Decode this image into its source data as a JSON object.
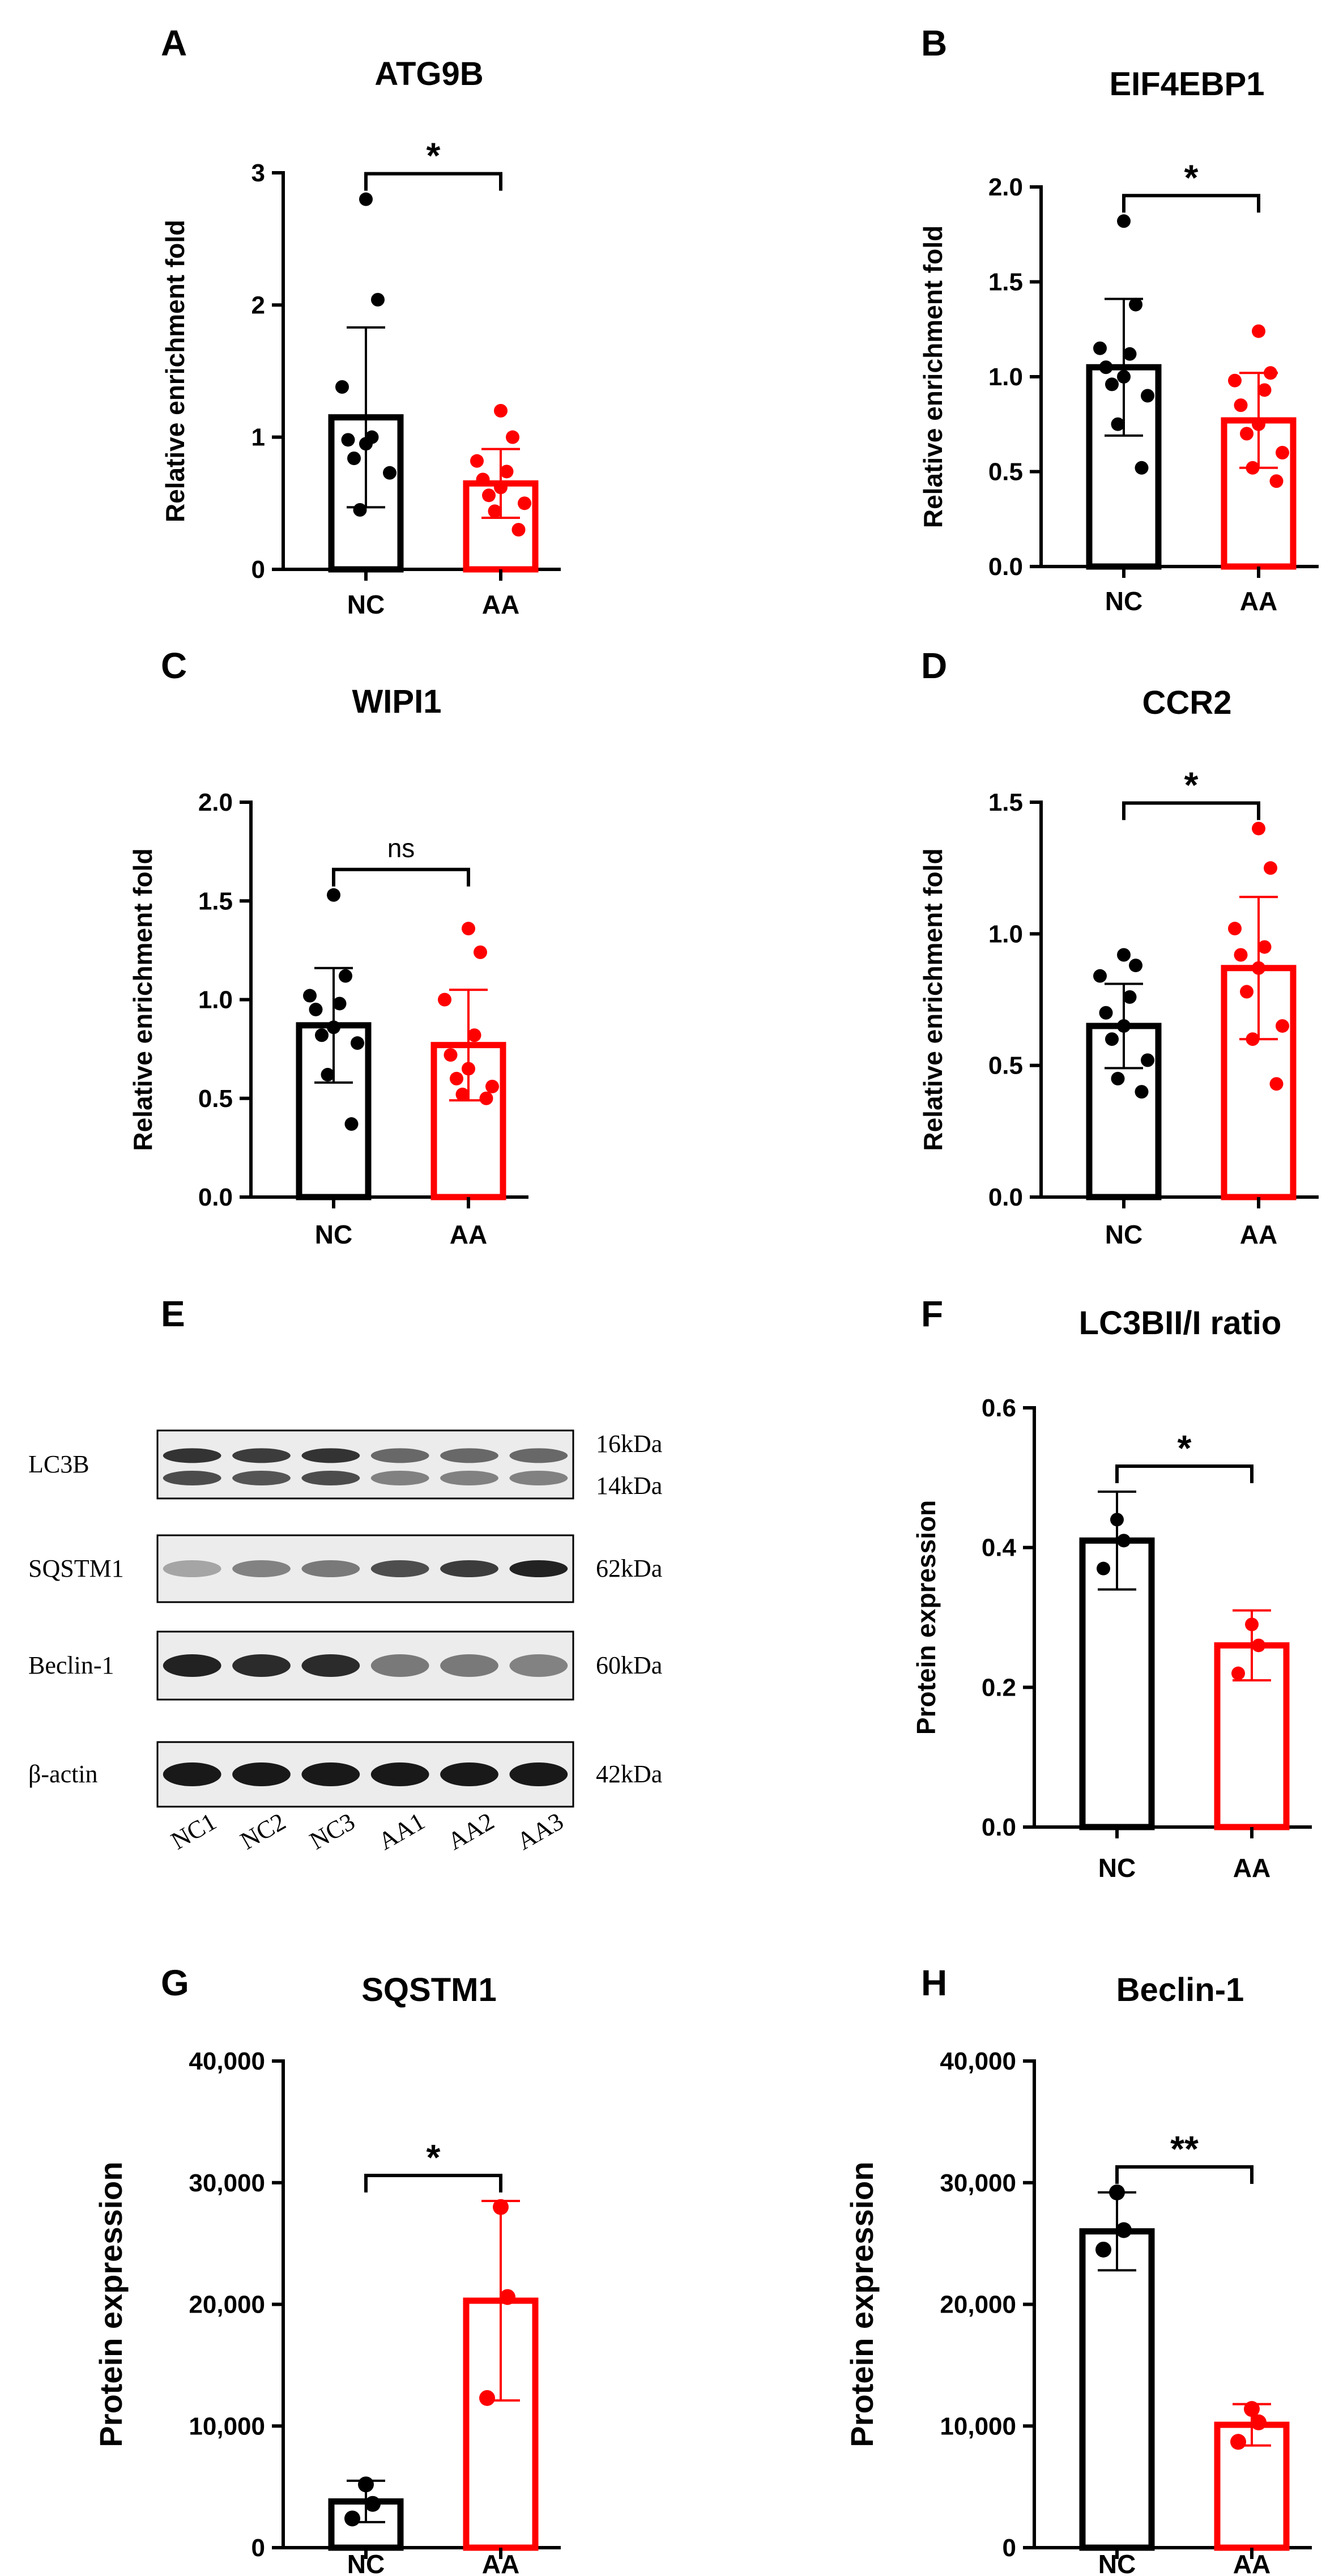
{
  "panels": [
    "A",
    "B",
    "C",
    "D",
    "E",
    "F",
    "G",
    "H"
  ],
  "chart_data": [
    {
      "type": "bar",
      "panel": "A",
      "title": "ATG9B",
      "ylabel": "Relative enrichment fold",
      "categories": [
        "NC",
        "AA"
      ],
      "colors": [
        "#000000",
        "#ff0000"
      ],
      "values": [
        1.15,
        0.65
      ],
      "errors": [
        0.68,
        0.26
      ],
      "points": [
        [
          2.8,
          2.04,
          1.38,
          1.0,
          0.98,
          0.95,
          0.84,
          0.73,
          0.45
        ],
        [
          1.2,
          1.0,
          0.82,
          0.74,
          0.68,
          0.62,
          0.56,
          0.5,
          0.44,
          0.3
        ]
      ],
      "ylim": [
        0,
        3
      ],
      "yticks": [
        0,
        1,
        2,
        3
      ],
      "ytick_labels": [
        "0",
        "1",
        "2",
        "3"
      ],
      "significance": "*"
    },
    {
      "type": "bar",
      "panel": "B",
      "title": "EIF4EBP1",
      "ylabel": "Relative enrichment fold",
      "categories": [
        "NC",
        "AA"
      ],
      "colors": [
        "#000000",
        "#ff0000"
      ],
      "values": [
        1.05,
        0.77
      ],
      "errors": [
        0.36,
        0.25
      ],
      "points": [
        [
          1.82,
          1.38,
          1.15,
          1.12,
          1.05,
          1.0,
          0.96,
          0.9,
          0.75,
          0.52
        ],
        [
          1.24,
          1.02,
          0.98,
          0.93,
          0.85,
          0.75,
          0.7,
          0.6,
          0.52,
          0.45
        ]
      ],
      "ylim": [
        0,
        2
      ],
      "yticks": [
        0,
        0.5,
        1,
        1.5,
        2
      ],
      "ytick_labels": [
        "0.0",
        "0.5",
        "1.0",
        "1.5",
        "2.0"
      ],
      "significance": "*"
    },
    {
      "type": "bar",
      "panel": "C",
      "title": "WIPI1",
      "ylabel": "Relative enrichment fold",
      "categories": [
        "NC",
        "AA"
      ],
      "colors": [
        "#000000",
        "#ff0000"
      ],
      "values": [
        0.87,
        0.77
      ],
      "errors": [
        0.29,
        0.28
      ],
      "points": [
        [
          1.53,
          1.12,
          1.02,
          0.98,
          0.95,
          0.86,
          0.82,
          0.78,
          0.62,
          0.37
        ],
        [
          1.36,
          1.24,
          1.0,
          0.82,
          0.72,
          0.65,
          0.6,
          0.56,
          0.52,
          0.5
        ]
      ],
      "ylim": [
        0,
        2
      ],
      "yticks": [
        0,
        0.5,
        1,
        1.5,
        2
      ],
      "ytick_labels": [
        "0.0",
        "0.5",
        "1.0",
        "1.5",
        "2.0"
      ],
      "significance": "ns"
    },
    {
      "type": "bar",
      "panel": "D",
      "title": "CCR2",
      "ylabel": "Relative enrichment fold",
      "categories": [
        "NC",
        "AA"
      ],
      "colors": [
        "#000000",
        "#ff0000"
      ],
      "values": [
        0.65,
        0.87
      ],
      "errors": [
        0.16,
        0.27
      ],
      "points": [
        [
          0.92,
          0.88,
          0.84,
          0.76,
          0.7,
          0.65,
          0.6,
          0.52,
          0.45,
          0.4
        ],
        [
          1.4,
          1.25,
          1.02,
          0.95,
          0.92,
          0.87,
          0.78,
          0.65,
          0.6,
          0.43
        ]
      ],
      "ylim": [
        0,
        1.5
      ],
      "yticks": [
        0,
        0.5,
        1,
        1.5
      ],
      "ytick_labels": [
        "0.0",
        "0.5",
        "1.0",
        "1.5"
      ],
      "significance": "*"
    },
    {
      "type": "bar",
      "panel": "F",
      "title": "LC3BII/I ratio",
      "ylabel": "Protein expression",
      "categories": [
        "NC",
        "AA"
      ],
      "colors": [
        "#000000",
        "#ff0000"
      ],
      "values": [
        0.41,
        0.26
      ],
      "errors": [
        0.07,
        0.05
      ],
      "points": [
        [
          0.44,
          0.41,
          0.37
        ],
        [
          0.29,
          0.26,
          0.22
        ]
      ],
      "ylim": [
        0,
        0.6
      ],
      "yticks": [
        0,
        0.2,
        0.4,
        0.6
      ],
      "ytick_labels": [
        "0.0",
        "0.2",
        "0.4",
        "0.6"
      ],
      "significance": "*"
    },
    {
      "type": "bar",
      "panel": "G",
      "title": "SQSTM1",
      "ylabel": "Protein expression",
      "categories": [
        "NC",
        "AA"
      ],
      "colors": [
        "#000000",
        "#ff0000"
      ],
      "values": [
        3800,
        20300
      ],
      "errors": [
        1700,
        8200
      ],
      "points": [
        [
          5200,
          3600,
          2400
        ],
        [
          28000,
          20600,
          12300
        ]
      ],
      "ylim": [
        0,
        40000
      ],
      "yticks": [
        0,
        10000,
        20000,
        30000,
        40000
      ],
      "ytick_labels": [
        "0",
        "10,000",
        "20,000",
        "30,000",
        "40,000"
      ],
      "significance": "*"
    },
    {
      "type": "bar",
      "panel": "H",
      "title": "Beclin-1",
      "ylabel": "Protein expression",
      "categories": [
        "NC",
        "AA"
      ],
      "colors": [
        "#000000",
        "#ff0000"
      ],
      "values": [
        26000,
        10100
      ],
      "errors": [
        3200,
        1700
      ],
      "points": [
        [
          29200,
          26100,
          24500
        ],
        [
          11400,
          10300,
          8700
        ]
      ],
      "ylim": [
        0,
        40000
      ],
      "yticks": [
        0,
        10000,
        20000,
        30000,
        40000
      ],
      "ytick_labels": [
        "0",
        "10,000",
        "20,000",
        "30,000",
        "40,000"
      ],
      "significance": "**"
    }
  ],
  "blot": {
    "panel": "E",
    "rows": [
      {
        "label": "LC3B",
        "sizes": [
          "16kDa",
          "14kDa"
        ],
        "intensity": [
          0.85,
          0.8,
          0.85,
          0.55,
          0.55,
          0.55
        ]
      },
      {
        "label": "SQSTM1",
        "sizes": [
          "62kDa"
        ],
        "intensity": [
          0.2,
          0.4,
          0.45,
          0.7,
          0.8,
          0.95
        ]
      },
      {
        "label": "Beclin-1",
        "sizes": [
          "60kDa"
        ],
        "intensity": [
          0.95,
          0.9,
          0.9,
          0.45,
          0.45,
          0.4
        ]
      },
      {
        "label": "β-actin",
        "sizes": [
          "42kDa"
        ],
        "intensity": [
          1,
          1,
          1,
          1,
          1,
          1
        ]
      }
    ],
    "lanes": [
      "NC1",
      "NC2",
      "NC3",
      "AA1",
      "AA2",
      "AA3"
    ]
  }
}
